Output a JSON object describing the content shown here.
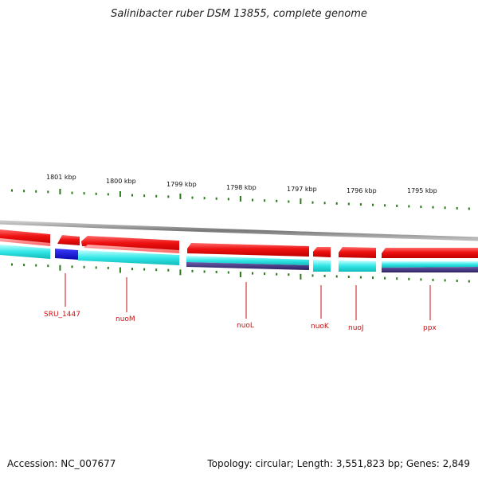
{
  "title": "Salinibacter ruber DSM 13855, complete genome",
  "footer": {
    "accession": "Accession: NC_007677",
    "summary": "Topology: circular; Length: 3,551,823 bp; Genes: 2,849"
  },
  "kbp_labels": [
    "1801 kbp",
    "1800 kbp",
    "1799 kbp",
    "1798 kbp",
    "1797 kbp",
    "1796 kbp",
    "1795 kbp"
  ],
  "genes": [
    "SRU_1447",
    "nuoM",
    "nuoL",
    "nuoK",
    "nuoJ",
    "ppx"
  ],
  "colors": {
    "backbone": "#8a8a8a",
    "cds_red": "#ee1111",
    "cds_red_light": "#ff7070",
    "cyan": "#22dddd",
    "cyan_light": "#aaffff",
    "blue": "#1111dd",
    "navy": "#44338a",
    "tick": "#2a7a1a",
    "label": "#cc1111"
  }
}
